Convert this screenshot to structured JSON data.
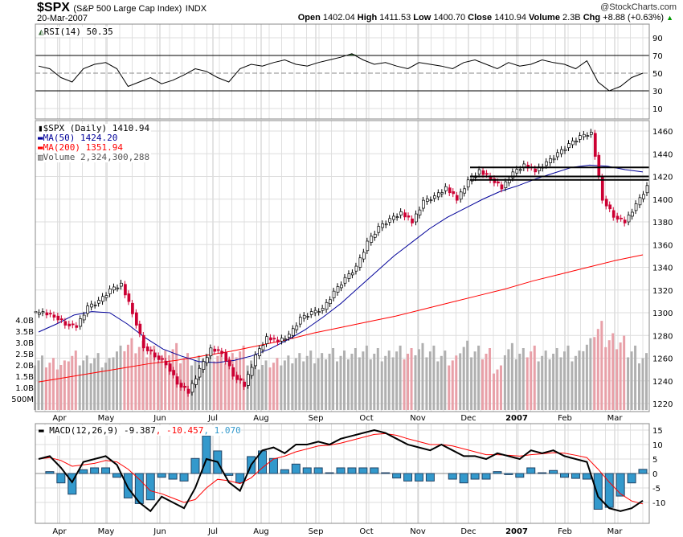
{
  "header": {
    "symbol": "$SPX",
    "name": "(S&P 500 Large Cap Index)",
    "exchange": "INDX",
    "date": "20-Mar-2007",
    "brand": "@StockCharts.com",
    "open_label": "Open",
    "open": "1402.04",
    "high_label": "High",
    "high": "1411.53",
    "low_label": "Low",
    "low": "1400.70",
    "close_label": "Close",
    "close": "1410.94",
    "volume_label": "Volume",
    "volume": "2.3B",
    "chg_label": "Chg",
    "chg": "+8.88 (+0.63%)"
  },
  "colors": {
    "up": "#000000",
    "down": "#cc0033",
    "ma50": "#000099",
    "ma200": "#ff0000",
    "rsi_fill": "#336633",
    "hist": "#3399cc",
    "vol_up": "#b0b0b0",
    "vol_down": "#e8a0a8"
  },
  "chart_data": [
    {
      "type": "line",
      "title": "RSI(14) 50.35",
      "label": "RSI(14)",
      "last": "50.35",
      "yticks": [
        "90",
        "70",
        "50",
        "30",
        "10"
      ],
      "ylim": [
        10,
        90
      ],
      "values": [
        58,
        55,
        45,
        40,
        55,
        60,
        62,
        55,
        35,
        40,
        45,
        38,
        42,
        48,
        55,
        52,
        45,
        40,
        55,
        60,
        58,
        62,
        65,
        60,
        58,
        62,
        65,
        68,
        72,
        65,
        60,
        62,
        58,
        55,
        62,
        60,
        58,
        55,
        62,
        65,
        60,
        55,
        62,
        58,
        60,
        65,
        62,
        60,
        55,
        64,
        40,
        30,
        35,
        45,
        50
      ]
    },
    {
      "type": "candlestick",
      "title": "$SPX (Daily) 1410.94",
      "ylim": [
        1220,
        1470
      ],
      "yticks": [
        "1460",
        "1440",
        "1420",
        "1400",
        "1380",
        "1360",
        "1340",
        "1320",
        "1300",
        "1280",
        "1260",
        "1240",
        "1220"
      ],
      "legend": {
        "price": "$SPX (Daily) 1410.94",
        "ma50": "MA(50) 1424.20",
        "ma200": "MA(200) 1351.94",
        "volume": "Volume 2,324,300,288"
      },
      "closes": [
        1300,
        1297,
        1290,
        1288,
        1305,
        1310,
        1320,
        1325,
        1300,
        1270,
        1262,
        1255,
        1238,
        1230,
        1250,
        1268,
        1265,
        1245,
        1236,
        1262,
        1278,
        1275,
        1280,
        1295,
        1300,
        1303,
        1318,
        1330,
        1340,
        1362,
        1375,
        1382,
        1388,
        1380,
        1398,
        1402,
        1410,
        1400,
        1416,
        1425,
        1418,
        1410,
        1423,
        1430,
        1425,
        1432,
        1440,
        1448,
        1455,
        1458,
        1400,
        1385,
        1380,
        1395,
        1411
      ],
      "ma50": [
        1283,
        1290,
        1298,
        1301,
        1300,
        1290,
        1278,
        1268,
        1262,
        1257,
        1256,
        1258,
        1262,
        1268,
        1276,
        1285,
        1296,
        1308,
        1322,
        1336,
        1350,
        1362,
        1374,
        1384,
        1392,
        1400,
        1407,
        1412,
        1418,
        1423,
        1428,
        1430,
        1429,
        1426,
        1424
      ],
      "ma200": [
        1239,
        1243,
        1247,
        1251,
        1255,
        1258,
        1262,
        1266,
        1271,
        1276,
        1282,
        1287,
        1292,
        1297,
        1303,
        1309,
        1315,
        1321,
        1328,
        1334,
        1340,
        1346,
        1351
      ],
      "resistance": [
        1428,
        1420,
        1417
      ],
      "volume_ticks": [
        "4.0B",
        "3.5B",
        "3.0B",
        "2.5B",
        "2.0B",
        "1.5B",
        "1.0B",
        "500M"
      ],
      "volume_b": [
        2.2,
        2.1,
        2.0,
        2.4,
        2.2,
        2.3,
        2.1,
        2.6,
        2.9,
        2.8,
        2.6,
        2.4,
        2.7,
        2.3,
        2.2,
        2.5,
        2.4,
        2.3,
        2.6,
        2.2,
        2.0,
        2.1,
        2.2,
        2.3,
        2.4,
        2.3,
        2.5,
        2.4,
        2.5,
        2.6,
        2.5,
        2.4,
        2.6,
        2.5,
        2.7,
        2.6,
        2.4,
        2.2,
        2.8,
        2.6,
        2.5,
        1.8,
        2.7,
        2.5,
        2.6,
        2.4,
        2.5,
        2.6,
        2.4,
        2.9,
        3.6,
        3.1,
        3.0,
        2.6,
        2.3
      ]
    },
    {
      "type": "line",
      "title": "MACD(12,26,9)",
      "label": "MACD(12,26,9)",
      "macd_last": "-9.387",
      "signal_last": "-10.457",
      "hist_last": "1.070",
      "yticks": [
        "15",
        "10",
        "5",
        "0",
        "-5",
        "-10"
      ],
      "ylim": [
        -15,
        17
      ],
      "macd": [
        5,
        6,
        2,
        -3,
        4,
        5,
        6,
        3,
        -5,
        -10,
        -13,
        -8,
        -10,
        -12,
        -5,
        5,
        4,
        -3,
        -6,
        3,
        8,
        9,
        7,
        10,
        10,
        11,
        10,
        12,
        13,
        14,
        15,
        14,
        12,
        10,
        9,
        8,
        10,
        8,
        6,
        6,
        5,
        7,
        6,
        5,
        8,
        7,
        8,
        6,
        5,
        4,
        -8,
        -12,
        -13,
        -12,
        -9.4
      ],
      "signal": [
        5,
        5.5,
        4.5,
        2.5,
        3,
        3.5,
        4.5,
        4,
        1.5,
        -2,
        -6,
        -7,
        -8.5,
        -10,
        -9,
        -5,
        -2,
        -2.5,
        -3.5,
        -1.5,
        2,
        5,
        6,
        7.5,
        8.5,
        9.5,
        9.8,
        10.5,
        11.5,
        12.5,
        13.5,
        13.8,
        13.2,
        12,
        11,
        10,
        10,
        9.5,
        8.5,
        7.5,
        6.5,
        6.5,
        6.3,
        6,
        6.5,
        6.8,
        7.2,
        7,
        6.3,
        5.5,
        1.5,
        -3,
        -7,
        -9.5,
        -10.5
      ]
    },
    {
      "type": "axis",
      "xticks": [
        "Apr",
        "May",
        "Jun",
        "Jul",
        "Aug",
        "Sep",
        "Oct",
        "Nov",
        "Dec",
        "2007",
        "Feb",
        "Mar"
      ]
    }
  ]
}
